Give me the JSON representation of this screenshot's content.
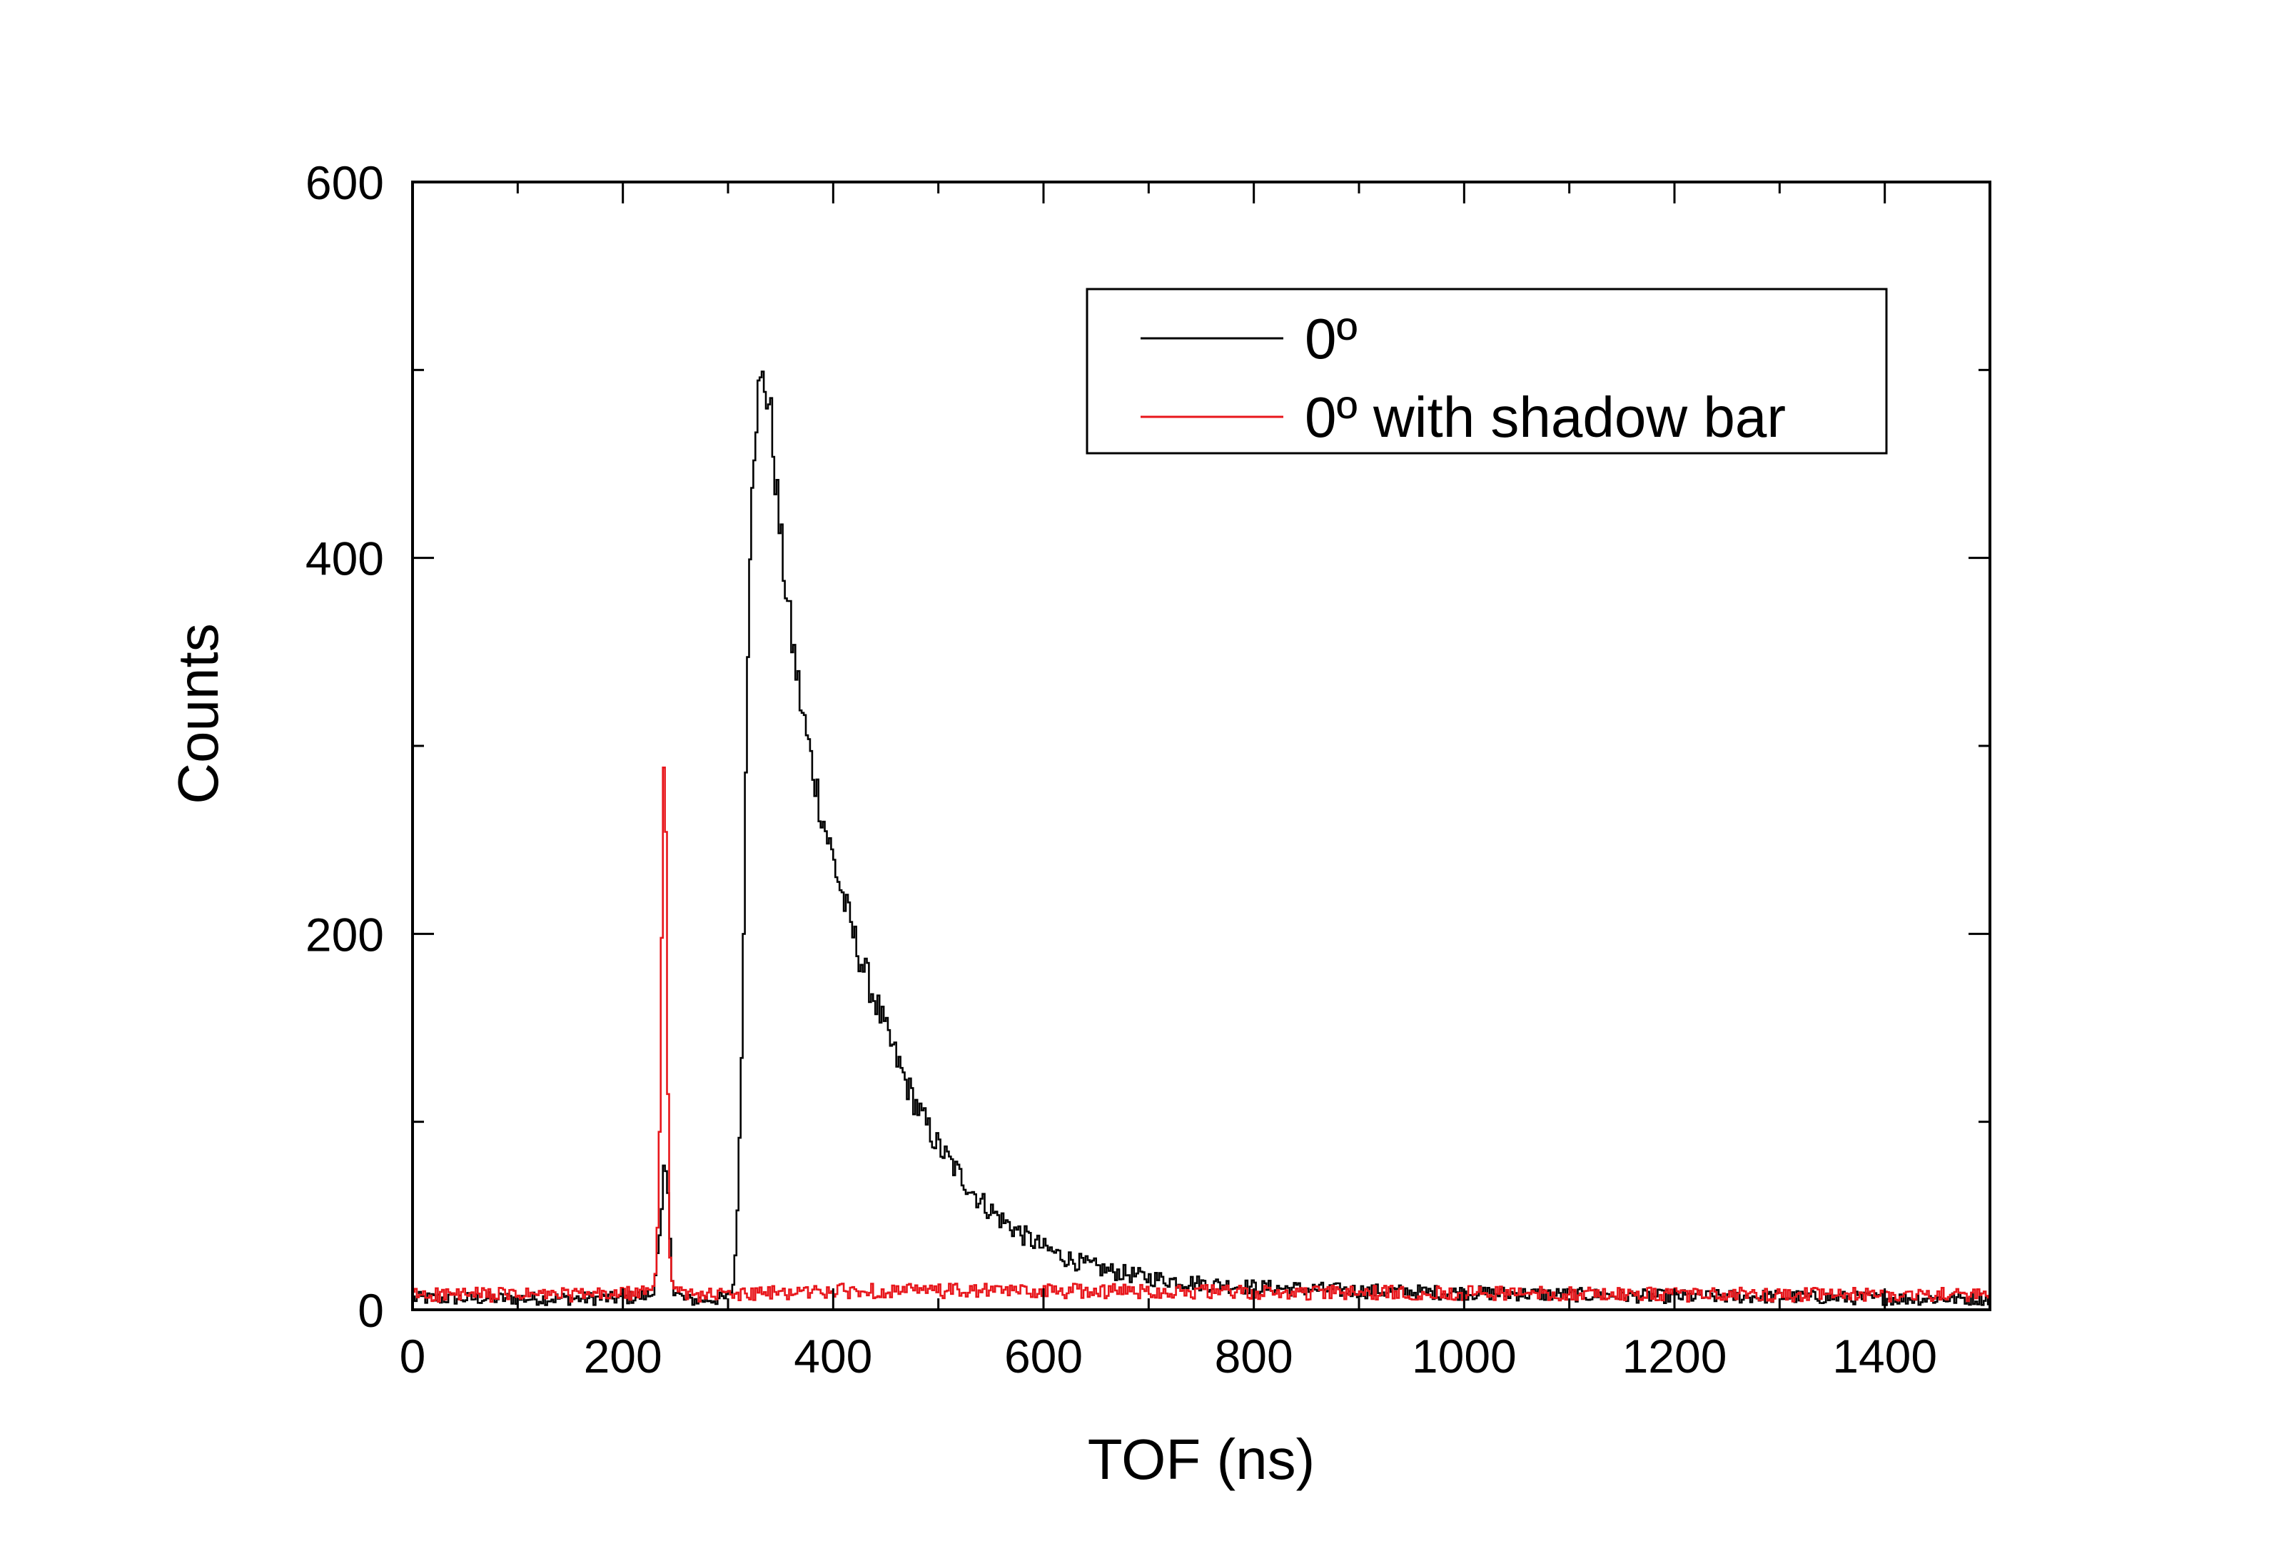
{
  "chart_data": {
    "type": "line",
    "title": "",
    "xlabel": "TOF (ns)",
    "ylabel": "Counts",
    "xlim": [
      0,
      1500
    ],
    "ylim": [
      0,
      600
    ],
    "grid": false,
    "legend_position": "top-right",
    "x_ticks": [
      0,
      200,
      400,
      600,
      800,
      1000,
      1200,
      1400
    ],
    "x_tick_labels": [
      "0",
      "200",
      "400",
      "600",
      "800",
      "1000",
      "1200",
      "1400"
    ],
    "y_ticks": [
      0,
      200,
      400,
      600
    ],
    "y_tick_labels": [
      "0",
      "200",
      "400",
      "600"
    ],
    "series": [
      {
        "name": "0º",
        "color": "#000000",
        "step": 2,
        "anchors": [
          [
            0,
            6
          ],
          [
            200,
            6
          ],
          [
            228,
            8
          ],
          [
            236,
            40
          ],
          [
            240,
            80
          ],
          [
            244,
            50
          ],
          [
            248,
            10
          ],
          [
            260,
            5
          ],
          [
            300,
            6
          ],
          [
            306,
            15
          ],
          [
            312,
            100
          ],
          [
            318,
            320
          ],
          [
            322,
            440
          ],
          [
            328,
            485
          ],
          [
            334,
            495
          ],
          [
            340,
            480
          ],
          [
            345,
            445
          ],
          [
            350,
            410
          ],
          [
            360,
            360
          ],
          [
            370,
            320
          ],
          [
            380,
            290
          ],
          [
            390,
            262
          ],
          [
            400,
            240
          ],
          [
            410,
            218
          ],
          [
            420,
            198
          ],
          [
            430,
            180
          ],
          [
            440,
            165
          ],
          [
            450,
            148
          ],
          [
            460,
            134
          ],
          [
            470,
            120
          ],
          [
            480,
            108
          ],
          [
            490,
            97
          ],
          [
            500,
            87
          ],
          [
            520,
            72
          ],
          [
            540,
            58
          ],
          [
            560,
            48
          ],
          [
            580,
            40
          ],
          [
            600,
            33
          ],
          [
            620,
            28
          ],
          [
            640,
            24
          ],
          [
            660,
            21
          ],
          [
            680,
            19
          ],
          [
            700,
            17
          ],
          [
            750,
            14
          ],
          [
            800,
            12
          ],
          [
            900,
            10
          ],
          [
            1000,
            9
          ],
          [
            1100,
            8
          ],
          [
            1200,
            7
          ],
          [
            1300,
            7
          ],
          [
            1400,
            6
          ],
          [
            1500,
            6
          ]
        ]
      },
      {
        "name": "0º with shadow bar",
        "color": "#e8161b",
        "step": 2,
        "anchors": [
          [
            0,
            8
          ],
          [
            180,
            8
          ],
          [
            225,
            9
          ],
          [
            232,
            20
          ],
          [
            236,
            120
          ],
          [
            238,
            280
          ],
          [
            240,
            300
          ],
          [
            242,
            200
          ],
          [
            244,
            40
          ],
          [
            248,
            12
          ],
          [
            256,
            8
          ],
          [
            300,
            8
          ],
          [
            400,
            10
          ],
          [
            500,
            10
          ],
          [
            600,
            10
          ],
          [
            700,
            10
          ],
          [
            800,
            9
          ],
          [
            900,
            9
          ],
          [
            1000,
            9
          ],
          [
            1200,
            8
          ],
          [
            1400,
            8
          ],
          [
            1500,
            8
          ]
        ]
      }
    ]
  }
}
